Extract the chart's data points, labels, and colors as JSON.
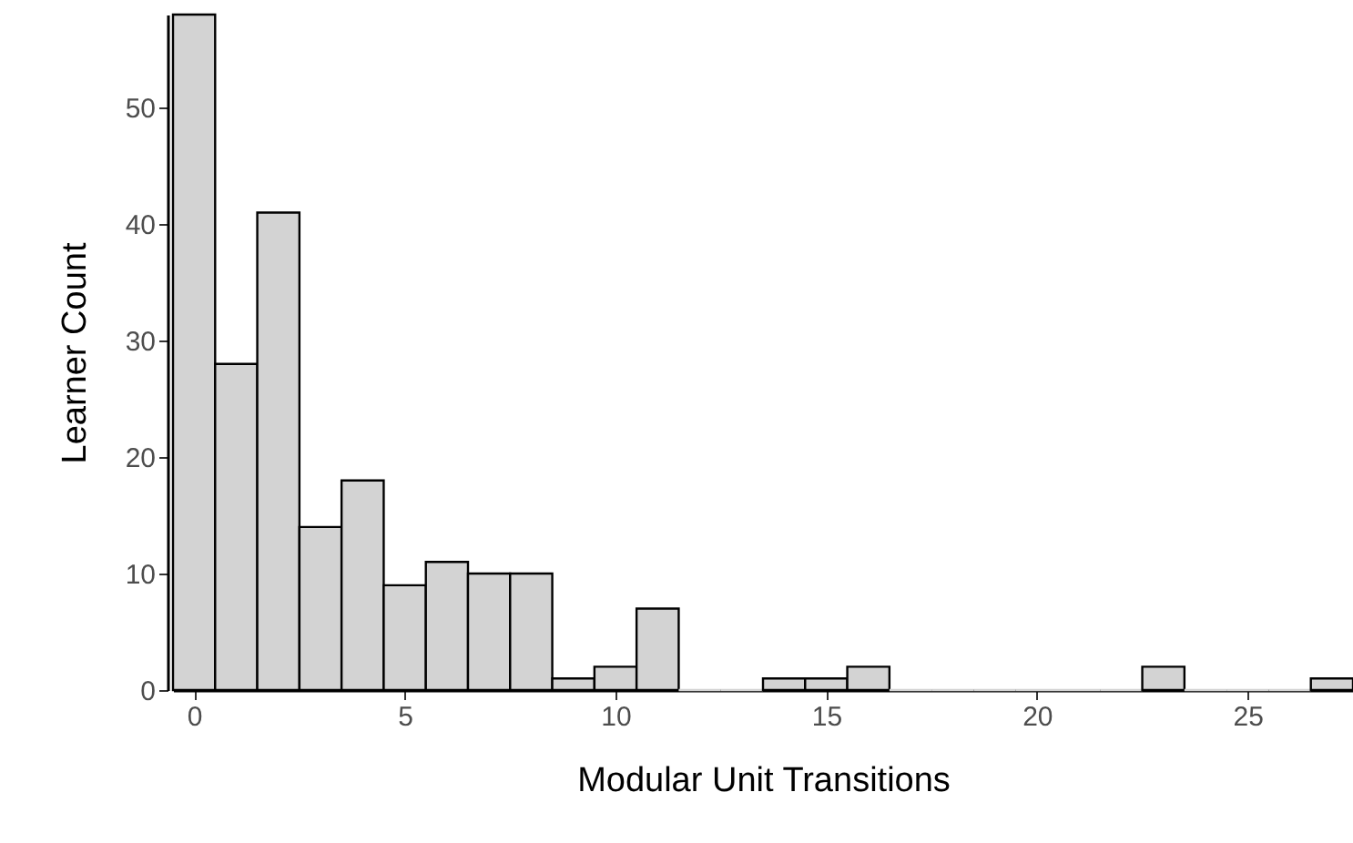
{
  "chart_data": {
    "type": "histogram",
    "xlabel": "Modular Unit Transitions",
    "ylabel": "Learner Count",
    "bins": [
      -0.5,
      0.5,
      1.5,
      2.5,
      3.5,
      4.5,
      5.5,
      6.5,
      7.5,
      8.5,
      9.5,
      10.5,
      11.5,
      12.5,
      13.5,
      14.5,
      15.5,
      16.5,
      17.5,
      18.5,
      19.5,
      20.5,
      21.5,
      22.5,
      23.5,
      24.5,
      25.5,
      26.5,
      27.5
    ],
    "values": [
      58,
      28,
      41,
      14,
      18,
      9,
      11,
      10,
      10,
      1,
      2,
      7,
      0,
      0,
      1,
      1,
      2,
      0,
      0,
      0,
      0,
      0,
      0,
      2,
      0,
      0,
      0,
      1
    ],
    "color": "#d3d3d3",
    "xlim": [
      -0.5,
      27.5
    ],
    "xticks": [
      0,
      5,
      10,
      15,
      20,
      25
    ],
    "ylim": [
      0,
      58
    ],
    "yticks": [
      0,
      10,
      20,
      30,
      40,
      50
    ],
    "grid": false
  }
}
